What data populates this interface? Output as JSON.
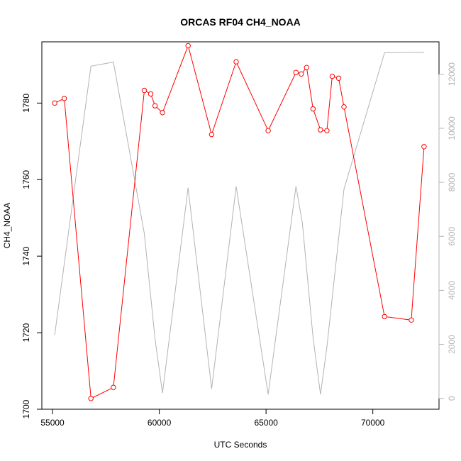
{
  "chart_data": {
    "type": "line",
    "title": "ORCAS RF04 CH4_NOAA",
    "xlabel": "UTC Seconds",
    "ylabel": "CH4_NOAA",
    "xlim": [
      54500,
      73100
    ],
    "ylim": [
      1700,
      1796
    ],
    "y2lim": [
      -400,
      13200
    ],
    "x_ticks": [
      55000,
      60000,
      65000,
      70000
    ],
    "y_ticks": [
      1700,
      1720,
      1740,
      1760,
      1780
    ],
    "y2_ticks": [
      0,
      2000,
      4000,
      6000,
      8000,
      10000,
      12000
    ],
    "series": [
      {
        "role": "primary",
        "color": "#ff0000",
        "marker": "open-circle",
        "points": [
          [
            55100,
            1780
          ],
          [
            55550,
            1781.2
          ],
          [
            56800,
            1702.8
          ],
          [
            57850,
            1705.7
          ],
          [
            59300,
            1783.3
          ],
          [
            59600,
            1782.4
          ],
          [
            59800,
            1779.3
          ],
          [
            60150,
            1777.5
          ],
          [
            61350,
            1795
          ],
          [
            62450,
            1771.8
          ],
          [
            63600,
            1790.8
          ],
          [
            65100,
            1772.8
          ],
          [
            66400,
            1788
          ],
          [
            66650,
            1787.6
          ],
          [
            66900,
            1789.3
          ],
          [
            67200,
            1778.5
          ],
          [
            67550,
            1773
          ],
          [
            67850,
            1772.8
          ],
          [
            68100,
            1787
          ],
          [
            68400,
            1786.5
          ],
          [
            68650,
            1779
          ],
          [
            70550,
            1724.2
          ],
          [
            71800,
            1723.3
          ],
          [
            72400,
            1768.6
          ]
        ]
      },
      {
        "role": "secondary",
        "color": "#b3b3b3",
        "points": [
          [
            55100,
            2350
          ],
          [
            56800,
            12300
          ],
          [
            57850,
            12450
          ],
          [
            59300,
            6100
          ],
          [
            59800,
            2200
          ],
          [
            60150,
            200
          ],
          [
            61350,
            7800
          ],
          [
            62450,
            350
          ],
          [
            63600,
            7850
          ],
          [
            65100,
            150
          ],
          [
            66400,
            7850
          ],
          [
            66700,
            6500
          ],
          [
            67200,
            2250
          ],
          [
            67550,
            150
          ],
          [
            67850,
            1900
          ],
          [
            68650,
            7750
          ],
          [
            70550,
            12800
          ],
          [
            72400,
            12820
          ]
        ]
      }
    ]
  }
}
